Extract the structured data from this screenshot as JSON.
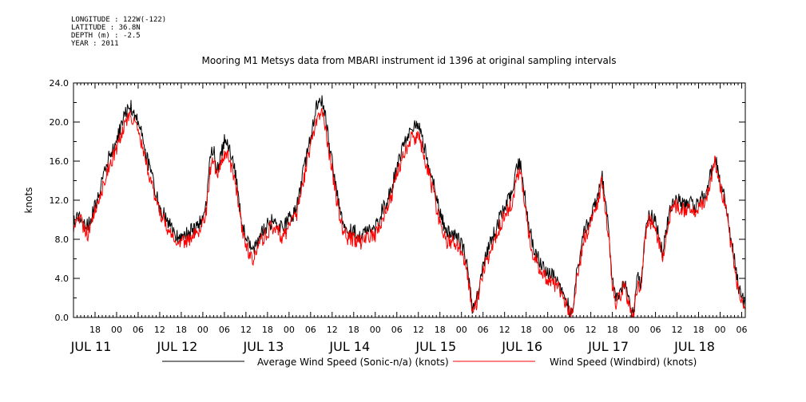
{
  "meta": {
    "longitude": "LONGITUDE : 122W(-122)",
    "latitude": "LATITUDE : 36.8N",
    "depth": "DEPTH (m) : -2.5",
    "year": "YEAR : 2011"
  },
  "chart_data": {
    "type": "line",
    "title": "Mooring M1 Metsys data from MBARI instrument id 1396 at original sampling intervals",
    "xlabel": "",
    "ylabel": "knots",
    "ylim": [
      0,
      24
    ],
    "yticks": [
      "0.0",
      "4.0",
      "8.0",
      "12.0",
      "16.0",
      "20.0",
      "24.0"
    ],
    "xlim_hours": [
      0,
      187
    ],
    "x_start": "JUL 11 12:00",
    "hour_ticks": [
      {
        "h": 6,
        "label": "18"
      },
      {
        "h": 12,
        "label": "00"
      },
      {
        "h": 18,
        "label": "06"
      },
      {
        "h": 24,
        "label": "12"
      },
      {
        "h": 30,
        "label": "18"
      },
      {
        "h": 36,
        "label": "00"
      },
      {
        "h": 42,
        "label": "06"
      },
      {
        "h": 48,
        "label": "12"
      },
      {
        "h": 54,
        "label": "18"
      },
      {
        "h": 60,
        "label": "00"
      },
      {
        "h": 66,
        "label": "06"
      },
      {
        "h": 72,
        "label": "12"
      },
      {
        "h": 78,
        "label": "18"
      },
      {
        "h": 84,
        "label": "00"
      },
      {
        "h": 90,
        "label": "06"
      },
      {
        "h": 96,
        "label": "12"
      },
      {
        "h": 102,
        "label": "18"
      },
      {
        "h": 108,
        "label": "00"
      },
      {
        "h": 114,
        "label": "06"
      },
      {
        "h": 120,
        "label": "12"
      },
      {
        "h": 126,
        "label": "18"
      },
      {
        "h": 132,
        "label": "00"
      },
      {
        "h": 138,
        "label": "06"
      },
      {
        "h": 144,
        "label": "12"
      },
      {
        "h": 150,
        "label": "18"
      },
      {
        "h": 156,
        "label": "00"
      },
      {
        "h": 162,
        "label": "06"
      },
      {
        "h": 168,
        "label": "12"
      },
      {
        "h": 174,
        "label": "18"
      },
      {
        "h": 180,
        "label": "00"
      },
      {
        "h": 186,
        "label": "06"
      }
    ],
    "day_labels": [
      {
        "h": 0,
        "label": "JUL 11"
      },
      {
        "h": 24,
        "label": "JUL 12"
      },
      {
        "h": 48,
        "label": "JUL 13"
      },
      {
        "h": 72,
        "label": "JUL 14"
      },
      {
        "h": 96,
        "label": "JUL 15"
      },
      {
        "h": 120,
        "label": "JUL 16"
      },
      {
        "h": 144,
        "label": "JUL 17"
      },
      {
        "h": 168,
        "label": "JUL 18"
      }
    ],
    "series": [
      {
        "name": "Average Wind Speed (Sonic-n/a) (knots)",
        "color": "#000000",
        "points": [
          [
            0,
            9.8
          ],
          [
            2,
            10.5
          ],
          [
            4,
            9.2
          ],
          [
            6,
            11.5
          ],
          [
            8,
            14
          ],
          [
            10,
            16.5
          ],
          [
            12,
            18
          ],
          [
            14,
            20.5
          ],
          [
            15.5,
            21.8
          ],
          [
            17,
            21
          ],
          [
            18.5,
            19.5
          ],
          [
            20,
            17
          ],
          [
            22,
            14
          ],
          [
            24,
            11.2
          ],
          [
            26,
            10
          ],
          [
            28,
            8.5
          ],
          [
            30,
            8.2
          ],
          [
            32,
            8.6
          ],
          [
            34,
            9.2
          ],
          [
            36,
            10
          ],
          [
            37,
            11.5
          ],
          [
            38,
            16
          ],
          [
            39,
            17.5
          ],
          [
            40,
            15
          ],
          [
            41,
            16.5
          ],
          [
            42,
            18
          ],
          [
            43,
            17.5
          ],
          [
            45,
            15
          ],
          [
            46,
            12
          ],
          [
            47,
            9.5
          ],
          [
            48,
            8
          ],
          [
            50,
            6.7
          ],
          [
            52,
            8.5
          ],
          [
            54,
            9.5
          ],
          [
            56,
            10
          ],
          [
            58,
            9
          ],
          [
            60,
            10
          ],
          [
            62,
            11
          ],
          [
            64,
            15
          ],
          [
            66,
            18.5
          ],
          [
            67.5,
            21.5
          ],
          [
            69,
            22.3
          ],
          [
            70,
            21
          ],
          [
            71,
            18
          ],
          [
            72,
            16
          ],
          [
            73,
            13.5
          ],
          [
            74,
            11
          ],
          [
            76,
            9
          ],
          [
            78,
            8.8
          ],
          [
            80,
            8.3
          ],
          [
            82,
            9
          ],
          [
            84,
            9.2
          ],
          [
            86,
            11
          ],
          [
            88,
            12.6
          ],
          [
            90,
            15.5
          ],
          [
            92,
            18
          ],
          [
            94,
            19.5
          ],
          [
            96,
            19.6
          ],
          [
            97,
            18.5
          ],
          [
            98,
            17
          ],
          [
            100,
            14
          ],
          [
            102,
            10.5
          ],
          [
            104,
            8.6
          ],
          [
            106,
            8.5
          ],
          [
            108,
            7.5
          ],
          [
            109,
            6.5
          ],
          [
            110,
            4
          ],
          [
            111,
            1
          ],
          [
            112,
            1.8
          ],
          [
            113,
            3.5
          ],
          [
            114,
            5.7
          ],
          [
            116,
            7.5
          ],
          [
            118,
            9.5
          ],
          [
            120,
            11.5
          ],
          [
            122,
            12.5
          ],
          [
            123.5,
            15.5
          ],
          [
            124.5,
            15.8
          ],
          [
            125.5,
            13
          ],
          [
            126,
            11
          ],
          [
            127,
            9
          ],
          [
            128,
            7
          ],
          [
            130,
            5.5
          ],
          [
            132,
            4.5
          ],
          [
            134,
            4
          ],
          [
            136,
            3
          ],
          [
            137,
            2
          ],
          [
            138,
            1
          ],
          [
            139,
            0.6
          ],
          [
            140,
            4.5
          ],
          [
            141,
            6
          ],
          [
            142,
            8.5
          ],
          [
            144,
            10.5
          ],
          [
            146,
            12.5
          ],
          [
            147,
            14.8
          ],
          [
            148,
            12
          ],
          [
            149,
            9
          ],
          [
            150,
            3.5
          ],
          [
            151,
            2
          ],
          [
            152,
            2.5
          ],
          [
            153,
            3.8
          ],
          [
            154,
            3
          ],
          [
            155,
            0.7
          ],
          [
            156,
            0.5
          ],
          [
            157,
            4
          ],
          [
            158,
            3.5
          ],
          [
            159,
            8
          ],
          [
            160,
            10.5
          ],
          [
            162,
            10
          ],
          [
            163,
            8
          ],
          [
            164,
            6.5
          ],
          [
            165,
            9
          ],
          [
            166,
            11
          ],
          [
            167,
            11.8
          ],
          [
            168,
            12
          ],
          [
            170,
            11.5
          ],
          [
            172,
            11.8
          ],
          [
            173,
            11
          ],
          [
            174,
            12
          ],
          [
            176,
            12.6
          ],
          [
            178,
            15.5
          ],
          [
            178.5,
            16.7
          ],
          [
            180,
            14
          ],
          [
            182,
            11
          ],
          [
            183,
            8
          ],
          [
            184,
            6
          ],
          [
            185,
            3.2
          ],
          [
            186,
            2.5
          ],
          [
            187,
            1.2
          ]
        ]
      },
      {
        "name": "Wind Speed (Windbird) (knots)",
        "color": "#ff0000",
        "points": [
          [
            0,
            9.4
          ],
          [
            2,
            9.8
          ],
          [
            4,
            8.6
          ],
          [
            6,
            10.8
          ],
          [
            8,
            13.2
          ],
          [
            10,
            15.6
          ],
          [
            12,
            17.2
          ],
          [
            14,
            19.6
          ],
          [
            15.5,
            20.6
          ],
          [
            17,
            20
          ],
          [
            18.5,
            18.4
          ],
          [
            20,
            16
          ],
          [
            22,
            13.2
          ],
          [
            24,
            10.6
          ],
          [
            26,
            9.4
          ],
          [
            28,
            7.8
          ],
          [
            30,
            7.6
          ],
          [
            32,
            8
          ],
          [
            34,
            8.6
          ],
          [
            36,
            9.4
          ],
          [
            37,
            11
          ],
          [
            38,
            15
          ],
          [
            39,
            16.6
          ],
          [
            40,
            14
          ],
          [
            41,
            15.4
          ],
          [
            42,
            17
          ],
          [
            43,
            16.4
          ],
          [
            45,
            14
          ],
          [
            46,
            11.2
          ],
          [
            47,
            8.8
          ],
          [
            48,
            7.2
          ],
          [
            50,
            6
          ],
          [
            52,
            7.8
          ],
          [
            54,
            8.8
          ],
          [
            56,
            9.4
          ],
          [
            58,
            8.2
          ],
          [
            60,
            9.2
          ],
          [
            62,
            10.2
          ],
          [
            64,
            14
          ],
          [
            66,
            17.4
          ],
          [
            67.5,
            20.2
          ],
          [
            69,
            21
          ],
          [
            70,
            19.8
          ],
          [
            71,
            17
          ],
          [
            72,
            15
          ],
          [
            73,
            12.6
          ],
          [
            74,
            10.2
          ],
          [
            76,
            8.2
          ],
          [
            78,
            8
          ],
          [
            80,
            7.6
          ],
          [
            82,
            8.2
          ],
          [
            84,
            8.4
          ],
          [
            86,
            10.2
          ],
          [
            88,
            11.8
          ],
          [
            90,
            14.4
          ],
          [
            92,
            16.8
          ],
          [
            94,
            18.4
          ],
          [
            96,
            18.4
          ],
          [
            97,
            17.4
          ],
          [
            98,
            16
          ],
          [
            100,
            13
          ],
          [
            102,
            9.6
          ],
          [
            104,
            7.8
          ],
          [
            106,
            7.8
          ],
          [
            108,
            6.8
          ],
          [
            109,
            5.8
          ],
          [
            110,
            3.4
          ],
          [
            111,
            0.6
          ],
          [
            112,
            1.2
          ],
          [
            113,
            2.8
          ],
          [
            114,
            4.8
          ],
          [
            116,
            6.6
          ],
          [
            118,
            8.6
          ],
          [
            120,
            10.6
          ],
          [
            122,
            11.6
          ],
          [
            123.5,
            14.4
          ],
          [
            124.5,
            14.8
          ],
          [
            125.5,
            12
          ],
          [
            126,
            10.2
          ],
          [
            127,
            8.2
          ],
          [
            128,
            6.2
          ],
          [
            130,
            4.8
          ],
          [
            132,
            3.8
          ],
          [
            134,
            3.4
          ],
          [
            136,
            2.4
          ],
          [
            137,
            1.4
          ],
          [
            138,
            0.6
          ],
          [
            139,
            0.3
          ],
          [
            140,
            3.8
          ],
          [
            141,
            5.4
          ],
          [
            142,
            7.8
          ],
          [
            144,
            9.8
          ],
          [
            146,
            11.8
          ],
          [
            147,
            14
          ],
          [
            148,
            11.2
          ],
          [
            149,
            8.2
          ],
          [
            150,
            3
          ],
          [
            151,
            1.6
          ],
          [
            152,
            2
          ],
          [
            153,
            3.2
          ],
          [
            154,
            2.4
          ],
          [
            155,
            0.3
          ],
          [
            156,
            0.2
          ],
          [
            157,
            3.4
          ],
          [
            158,
            3
          ],
          [
            159,
            7.4
          ],
          [
            160,
            9.8
          ],
          [
            162,
            9.4
          ],
          [
            163,
            7.4
          ],
          [
            164,
            6
          ],
          [
            165,
            8.4
          ],
          [
            166,
            10.4
          ],
          [
            167,
            11.2
          ],
          [
            168,
            11.4
          ],
          [
            170,
            11
          ],
          [
            172,
            11.2
          ],
          [
            173,
            10.4
          ],
          [
            174,
            11.4
          ],
          [
            176,
            12
          ],
          [
            178,
            14.8
          ],
          [
            178.5,
            16
          ],
          [
            180,
            13.4
          ],
          [
            182,
            10.4
          ],
          [
            183,
            7.4
          ],
          [
            184,
            5.4
          ],
          [
            185,
            2.6
          ],
          [
            186,
            2
          ],
          [
            187,
            0.8
          ]
        ]
      }
    ]
  }
}
